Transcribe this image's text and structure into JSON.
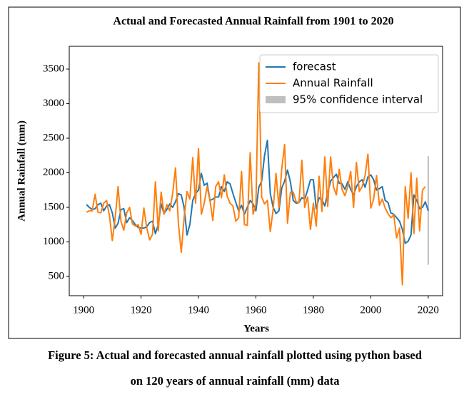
{
  "chart_data": {
    "type": "line",
    "title": "Actual and Forecasted Annual Rainfall from 1901 to 2020",
    "xlabel": "Years",
    "ylabel": "Annual Rainfall (mm)",
    "x": [
      1901,
      1902,
      1903,
      1904,
      1905,
      1906,
      1907,
      1908,
      1909,
      1910,
      1911,
      1912,
      1913,
      1914,
      1915,
      1916,
      1917,
      1918,
      1919,
      1920,
      1921,
      1922,
      1923,
      1924,
      1925,
      1926,
      1927,
      1928,
      1929,
      1930,
      1931,
      1932,
      1933,
      1934,
      1935,
      1936,
      1937,
      1938,
      1939,
      1940,
      1941,
      1942,
      1943,
      1944,
      1945,
      1946,
      1947,
      1948,
      1949,
      1950,
      1951,
      1952,
      1953,
      1954,
      1955,
      1956,
      1957,
      1958,
      1959,
      1960,
      1961,
      1962,
      1963,
      1964,
      1965,
      1966,
      1967,
      1968,
      1969,
      1970,
      1971,
      1972,
      1973,
      1974,
      1975,
      1976,
      1977,
      1978,
      1979,
      1980,
      1981,
      1982,
      1983,
      1984,
      1985,
      1986,
      1987,
      1988,
      1989,
      1990,
      1991,
      1992,
      1993,
      1994,
      1995,
      1996,
      1997,
      1998,
      1999,
      2000,
      2001,
      2002,
      2003,
      2004,
      2005,
      2006,
      2007,
      2008,
      2009,
      2010,
      2011,
      2012,
      2013,
      2014,
      2015,
      2016,
      2017,
      2018,
      2019,
      2020
    ],
    "series": [
      {
        "name": "forecast",
        "color": "#1f77b4",
        "values": [
          1540,
          1500,
          1470,
          1480,
          1540,
          1560,
          1450,
          1520,
          1540,
          1420,
          1200,
          1270,
          1470,
          1480,
          1280,
          1350,
          1310,
          1250,
          1210,
          1200,
          1200,
          1220,
          1280,
          1300,
          1120,
          1250,
          1550,
          1410,
          1470,
          1550,
          1500,
          1580,
          1700,
          1680,
          1500,
          1100,
          1250,
          1600,
          1700,
          1750,
          1990,
          1820,
          1850,
          1600,
          1620,
          1650,
          1650,
          1800,
          1730,
          1870,
          1840,
          1700,
          1570,
          1450,
          1530,
          1400,
          1500,
          1600,
          1550,
          1450,
          1790,
          1880,
          2250,
          2470,
          1700,
          1500,
          1410,
          1450,
          1780,
          1880,
          2040,
          1870,
          1600,
          1560,
          1570,
          1640,
          1620,
          1750,
          1900,
          1900,
          1480,
          1640,
          1610,
          1520,
          1710,
          1880,
          1930,
          1980,
          1850,
          1840,
          1760,
          1870,
          1760,
          1680,
          1800,
          1870,
          1900,
          1790,
          1940,
          1970,
          1900,
          1750,
          1770,
          1800,
          1600,
          1570,
          1420,
          1400,
          1350,
          1300,
          1180,
          980,
          1010,
          1100,
          1680,
          1600,
          1480,
          1500,
          1580,
          1450
        ]
      },
      {
        "name": "Annual Rainfall",
        "color": "#ff7f0e",
        "values": [
          1430,
          1450,
          1450,
          1690,
          1430,
          1420,
          1560,
          1600,
          1380,
          1020,
          1350,
          1800,
          1300,
          1170,
          1420,
          1500,
          1260,
          1230,
          1250,
          1110,
          1490,
          1200,
          1030,
          1110,
          1870,
          1160,
          1720,
          1400,
          1540,
          1450,
          1700,
          2070,
          1270,
          850,
          1350,
          1730,
          1620,
          2220,
          1560,
          2350,
          1400,
          1560,
          1800,
          1600,
          1310,
          1800,
          1870,
          1640,
          1970,
          1660,
          1560,
          1520,
          1300,
          1350,
          2020,
          1250,
          1240,
          2290,
          1400,
          1550,
          3590,
          1650,
          1550,
          1600,
          1150,
          1470,
          1990,
          1500,
          2060,
          2410,
          1270,
          1720,
          1720,
          1580,
          1570,
          2180,
          1500,
          1650,
          1180,
          1560,
          1230,
          1950,
          1440,
          2230,
          1510,
          2230,
          1800,
          1680,
          2050,
          1760,
          1670,
          1800,
          2020,
          1500,
          2150,
          1730,
          1800,
          1960,
          2270,
          1490,
          1620,
          1960,
          1530,
          1620,
          1490,
          1410,
          1350,
          1390,
          1060,
          1200,
          380,
          1800,
          1340,
          2000,
          1120,
          1920,
          1160,
          1750,
          1800,
          null
        ]
      }
    ],
    "interval": {
      "name": "95% confidence interval",
      "color": "#808080",
      "x": [
        2020
      ],
      "lower": [
        670
      ],
      "upper": [
        2240
      ]
    },
    "xlim": [
      1895,
      2025
    ],
    "ylim": [
      222,
      3830
    ],
    "xticks": [
      1900,
      1920,
      1940,
      1960,
      1980,
      2000,
      2020
    ],
    "yticks": [
      500,
      1000,
      1500,
      2000,
      2500,
      3000,
      3500
    ],
    "legend": "upper right"
  },
  "caption": [
    "Figure 5: Actual and forecasted annual rainfall plotted using python based",
    "on 120 years of annual rainfall (mm) data"
  ]
}
